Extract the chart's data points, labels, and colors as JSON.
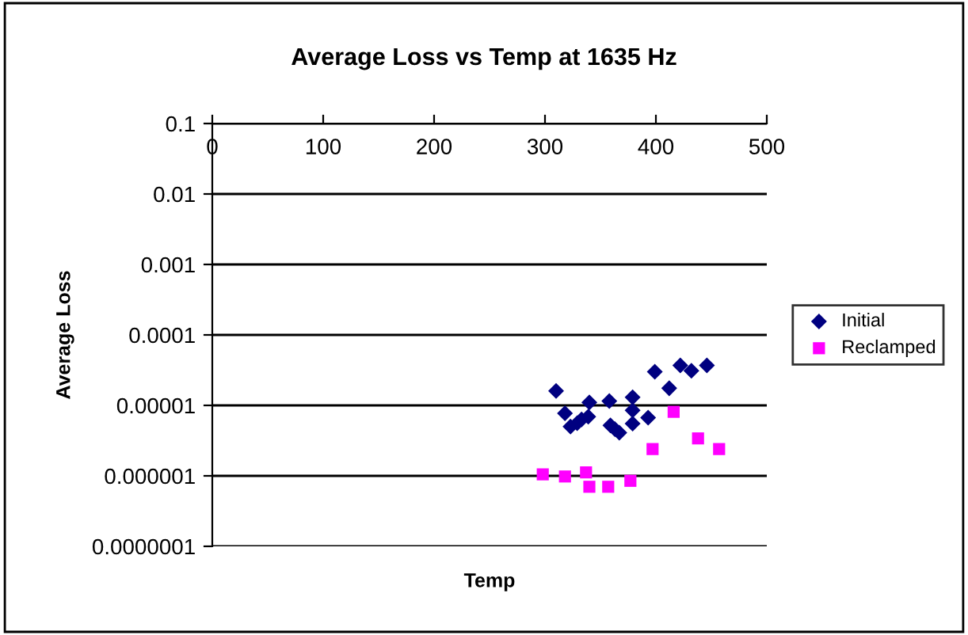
{
  "chart_data": {
    "type": "scatter",
    "title": "Average Loss vs Temp at 1635 Hz",
    "xlabel": "Temp",
    "ylabel": "Average Loss",
    "log": "y",
    "grid": "y",
    "legend": "right",
    "xlim": [
      0,
      500
    ],
    "xticks": [
      0,
      100,
      200,
      300,
      400,
      500
    ],
    "ylim": [
      1e-07,
      0.1
    ],
    "yticks": [
      {
        "value": 1e-07,
        "label": "0.0000001"
      },
      {
        "value": 1e-06,
        "label": "0.000001"
      },
      {
        "value": 1e-05,
        "label": "0.00001"
      },
      {
        "value": 0.0001,
        "label": "0.0001"
      },
      {
        "value": 0.001,
        "label": "0.001"
      },
      {
        "value": 0.01,
        "label": "0.01"
      },
      {
        "value": 0.1,
        "label": "0.1"
      }
    ],
    "series": [
      {
        "name": "Initial",
        "color": "#000080",
        "marker": "diamond",
        "x": [
          310,
          318,
          323,
          329,
          333,
          339,
          340,
          358,
          359,
          363,
          367,
          379,
          379,
          379,
          393,
          399,
          412,
          422,
          432,
          446
        ],
        "values": [
          1.6e-05,
          7.7e-06,
          5e-06,
          5.6e-06,
          6.3e-06,
          6.9e-06,
          1.1e-05,
          1.15e-05,
          5.2e-06,
          4.6e-06,
          4.1e-06,
          1.3e-05,
          8.5e-06,
          5.5e-06,
          6.7e-06,
          3e-05,
          1.75e-05,
          3.7e-05,
          3.1e-05,
          3.7e-05
        ]
      },
      {
        "name": "Reclamped",
        "color": "#ff00ff",
        "marker": "square",
        "x": [
          298,
          318,
          337,
          340,
          357,
          377,
          397,
          416,
          438,
          457
        ],
        "values": [
          1.05e-06,
          9.8e-07,
          1.12e-06,
          7e-07,
          7e-07,
          8.5e-07,
          2.4e-06,
          8.1e-06,
          3.4e-06,
          2.4e-06
        ]
      }
    ]
  }
}
